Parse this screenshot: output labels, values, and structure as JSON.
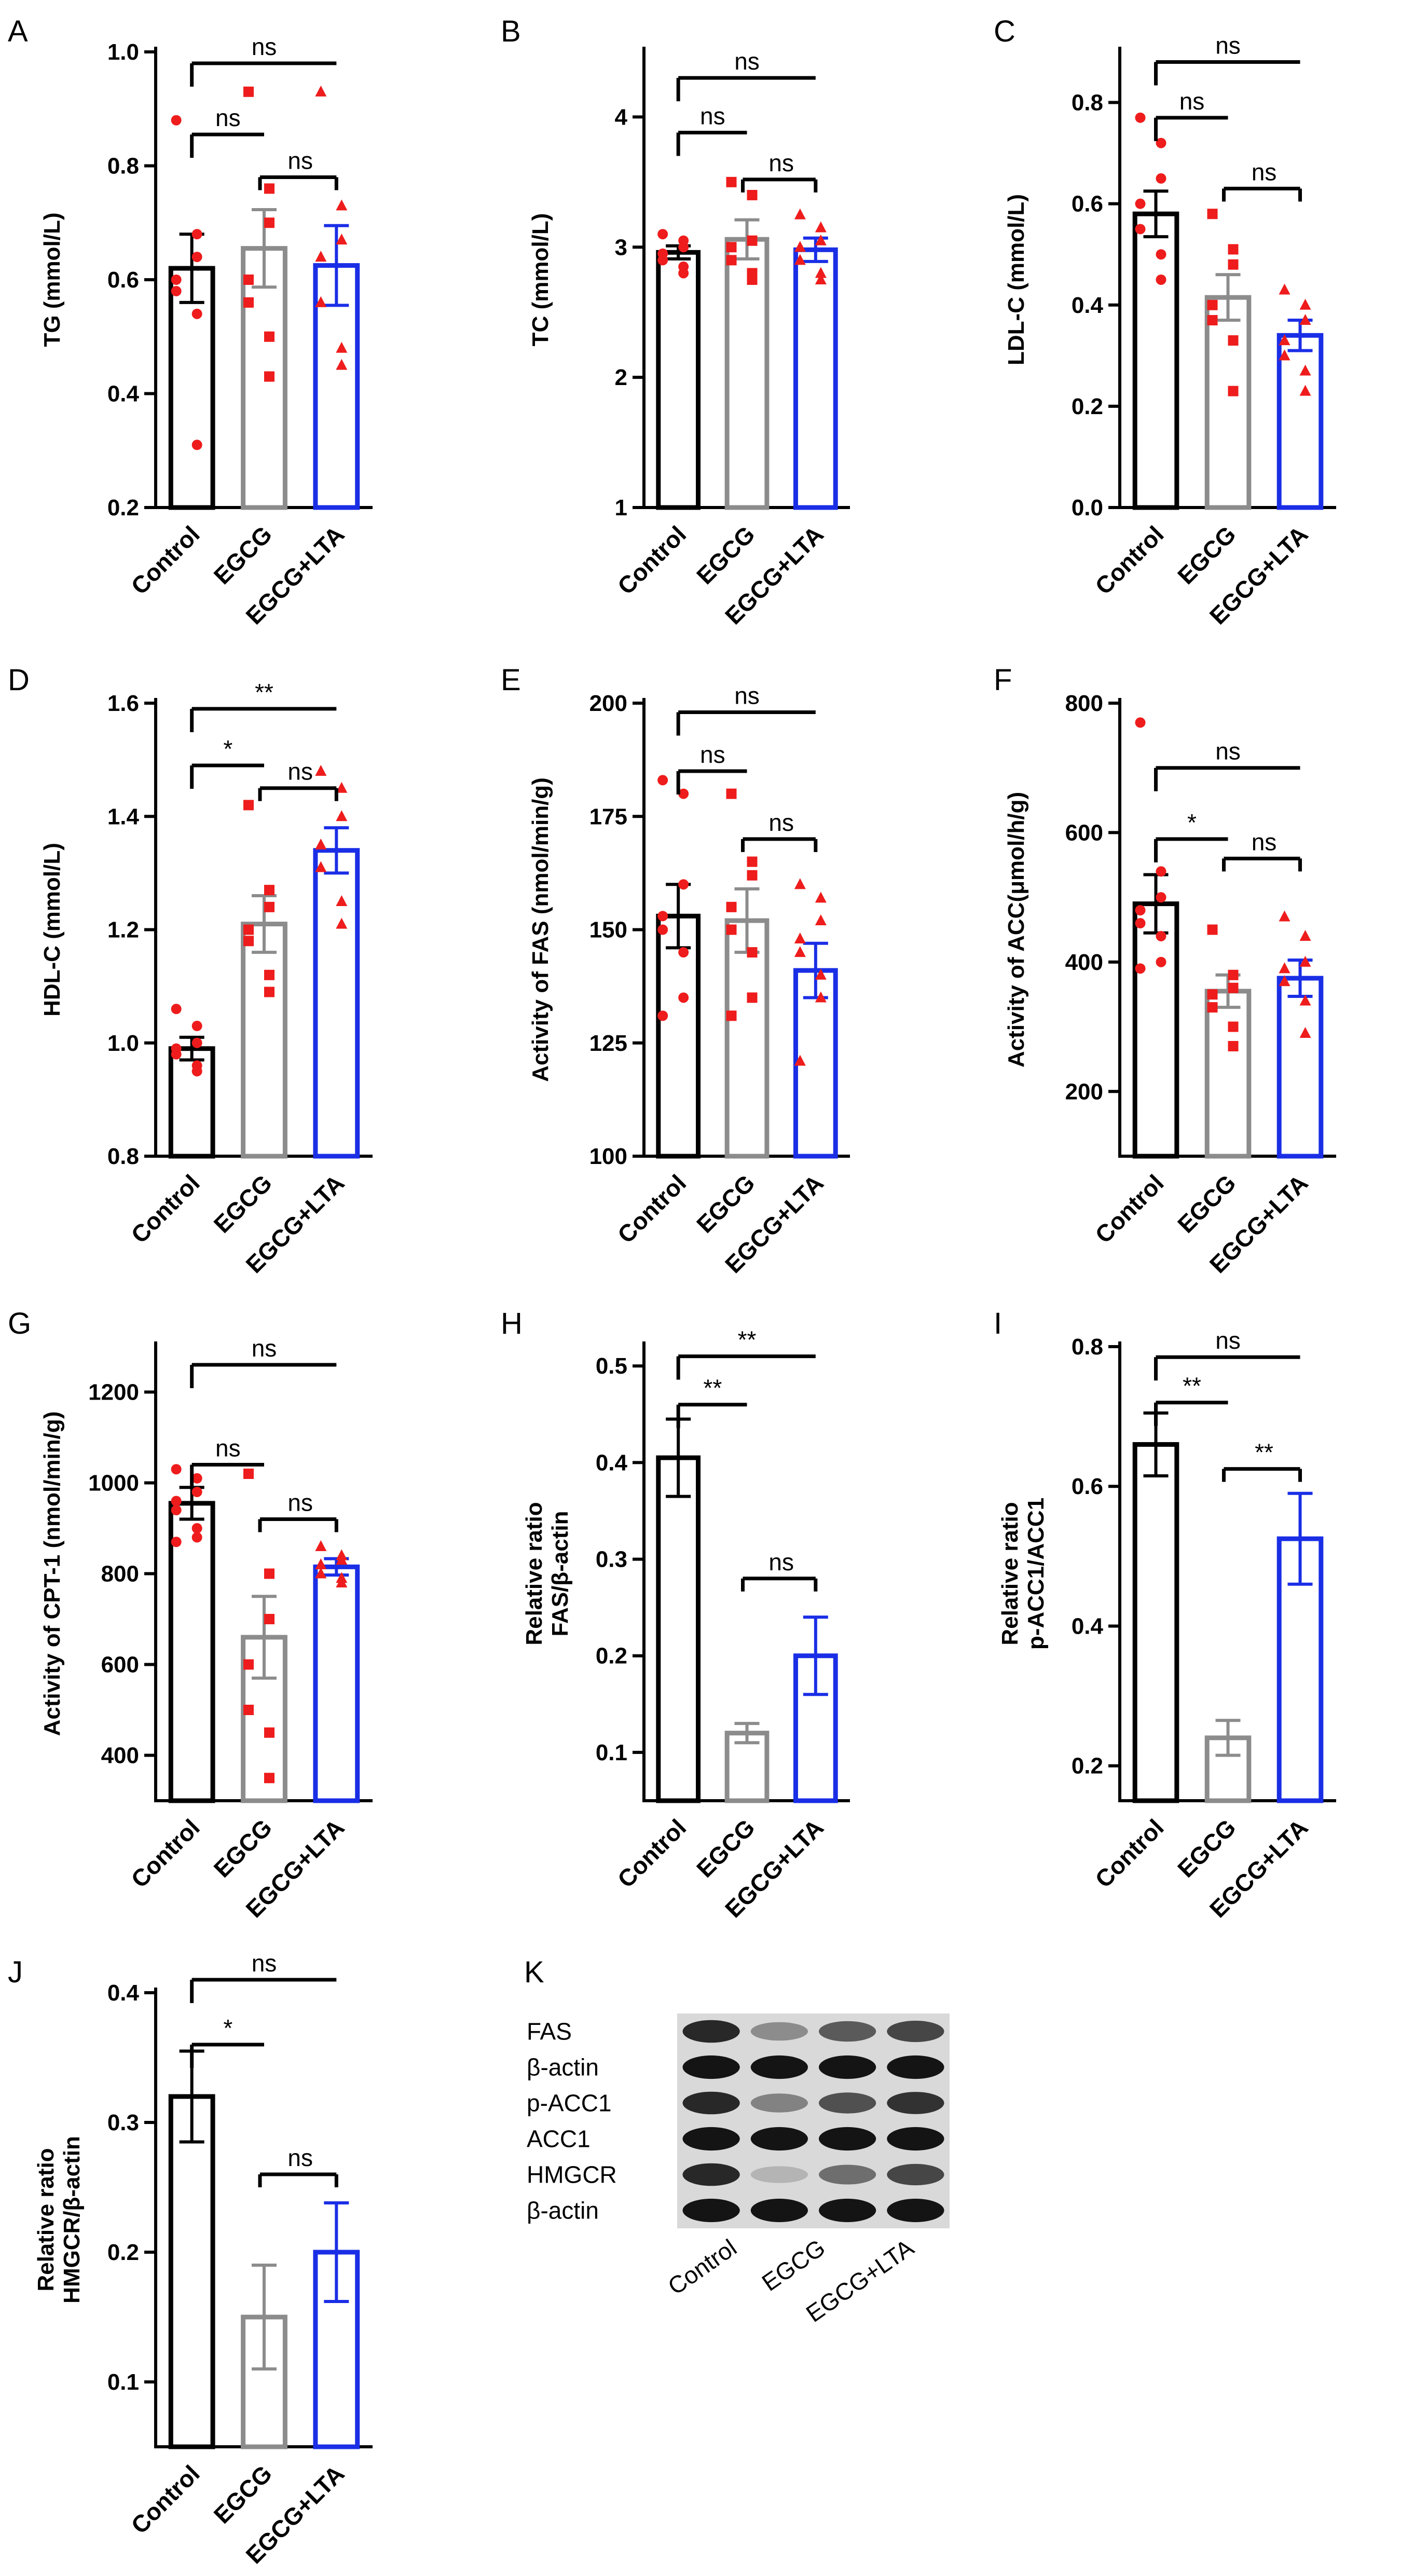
{
  "colors": {
    "control": "#000000",
    "egcg": "#8c8c8c",
    "egcg_lta": "#1a2ee6",
    "points": "#ee1c1c"
  },
  "chart_data": [
    {
      "id": "A",
      "type": "bar",
      "ylabel": "TG (mmol/L)",
      "categories": [
        "Control",
        "EGCG",
        "EGCG+LTA"
      ],
      "ylim": [
        0.2,
        1.0
      ],
      "yticks": [
        0.2,
        0.4,
        0.6,
        0.8,
        1.0
      ],
      "tick_decimals": 1,
      "values": [
        0.62,
        0.655,
        0.625
      ],
      "errors": [
        0.06,
        0.068,
        0.07
      ],
      "points": [
        [
          0.88,
          0.68,
          0.64,
          0.6,
          0.58,
          0.54,
          0.31
        ],
        [
          0.93,
          0.76,
          0.7,
          0.6,
          0.56,
          0.5,
          0.43
        ],
        [
          0.93,
          0.73,
          0.67,
          0.64,
          0.56,
          0.48,
          0.45
        ]
      ],
      "markers": [
        "circle",
        "square",
        "triangle"
      ],
      "significance": [
        {
          "from": 0,
          "to": 1,
          "label": "ns",
          "y": 0.855
        },
        {
          "from": 1,
          "to": 2,
          "label": "ns",
          "y": 0.78
        },
        {
          "from": 0,
          "to": 2,
          "label": "ns",
          "y": 0.98
        }
      ]
    },
    {
      "id": "B",
      "type": "bar",
      "ylabel": "TC (mmol/L)",
      "categories": [
        "Control",
        "EGCG",
        "EGCG+LTA"
      ],
      "ylim": [
        1,
        4.5
      ],
      "yticks": [
        1,
        2,
        3,
        4
      ],
      "tick_decimals": 0,
      "values": [
        2.96,
        3.06,
        2.98
      ],
      "errors": [
        0.05,
        0.15,
        0.09
      ],
      "points": [
        [
          3.1,
          3.05,
          3.0,
          2.95,
          2.9,
          2.85,
          2.8
        ],
        [
          3.5,
          3.4,
          3.05,
          3.0,
          2.9,
          2.8,
          2.75
        ],
        [
          3.25,
          3.15,
          3.05,
          3.0,
          2.9,
          2.8,
          2.75
        ]
      ],
      "markers": [
        "circle",
        "square",
        "triangle"
      ],
      "significance": [
        {
          "from": 0,
          "to": 1,
          "label": "ns",
          "y": 3.88
        },
        {
          "from": 1,
          "to": 2,
          "label": "ns",
          "y": 3.52
        },
        {
          "from": 0,
          "to": 2,
          "label": "ns",
          "y": 4.3
        }
      ]
    },
    {
      "id": "C",
      "type": "bar",
      "ylabel": "LDL-C (mmol/L)",
      "categories": [
        "Control",
        "EGCG",
        "EGCG+LTA"
      ],
      "ylim": [
        0.0,
        0.9
      ],
      "yticks": [
        0.0,
        0.2,
        0.4,
        0.6,
        0.8
      ],
      "tick_decimals": 1,
      "values": [
        0.58,
        0.415,
        0.34
      ],
      "errors": [
        0.045,
        0.045,
        0.03
      ],
      "points": [
        [
          0.77,
          0.72,
          0.65,
          0.6,
          0.55,
          0.5,
          0.45
        ],
        [
          0.58,
          0.51,
          0.48,
          0.4,
          0.37,
          0.33,
          0.23
        ],
        [
          0.43,
          0.4,
          0.37,
          0.33,
          0.3,
          0.27,
          0.23
        ]
      ],
      "markers": [
        "circle",
        "square",
        "triangle"
      ],
      "significance": [
        {
          "from": 0,
          "to": 1,
          "label": "ns",
          "y": 0.77
        },
        {
          "from": 1,
          "to": 2,
          "label": "ns",
          "y": 0.63
        },
        {
          "from": 0,
          "to": 2,
          "label": "ns",
          "y": 0.88
        }
      ]
    },
    {
      "id": "D",
      "type": "bar",
      "ylabel": "HDL-C (mmol/L)",
      "categories": [
        "Control",
        "EGCG",
        "EGCG+LTA"
      ],
      "ylim": [
        0.8,
        1.6
      ],
      "yticks": [
        0.8,
        1.0,
        1.2,
        1.4,
        1.6
      ],
      "tick_decimals": 1,
      "values": [
        0.99,
        1.21,
        1.34
      ],
      "errors": [
        0.02,
        0.05,
        0.04
      ],
      "points": [
        [
          1.06,
          1.03,
          1.0,
          0.99,
          0.98,
          0.96,
          0.95
        ],
        [
          1.42,
          1.27,
          1.24,
          1.2,
          1.18,
          1.12,
          1.09
        ],
        [
          1.48,
          1.45,
          1.4,
          1.35,
          1.31,
          1.25,
          1.21
        ]
      ],
      "markers": [
        "circle",
        "square",
        "triangle"
      ],
      "significance": [
        {
          "from": 0,
          "to": 1,
          "label": "*",
          "y": 1.49
        },
        {
          "from": 1,
          "to": 2,
          "label": "ns",
          "y": 1.45
        },
        {
          "from": 0,
          "to": 2,
          "label": "**",
          "y": 1.59
        }
      ]
    },
    {
      "id": "E",
      "type": "bar",
      "ylabel": "Activity of FAS (nmol/min/g)",
      "categories": [
        "Control",
        "EGCG",
        "EGCG+LTA"
      ],
      "ylim": [
        100,
        200
      ],
      "yticks": [
        100,
        125,
        150,
        175,
        200
      ],
      "tick_decimals": 0,
      "values": [
        153,
        152,
        141
      ],
      "errors": [
        7,
        7,
        6
      ],
      "points": [
        [
          183,
          180,
          160,
          153,
          150,
          145,
          135,
          131
        ],
        [
          180,
          165,
          162,
          155,
          150,
          145,
          135,
          131
        ],
        [
          160,
          157,
          152,
          148,
          145,
          140,
          135,
          121
        ]
      ],
      "markers": [
        "circle",
        "square",
        "triangle"
      ],
      "significance": [
        {
          "from": 0,
          "to": 1,
          "label": "ns",
          "y": 185
        },
        {
          "from": 1,
          "to": 2,
          "label": "ns",
          "y": 170
        },
        {
          "from": 0,
          "to": 2,
          "label": "ns",
          "y": 198
        }
      ]
    },
    {
      "id": "F",
      "type": "bar",
      "ylabel": "Activity of ACC(μmol/h/g)",
      "categories": [
        "Control",
        "EGCG",
        "EGCG+LTA"
      ],
      "ylim": [
        100,
        800
      ],
      "yticks": [
        200,
        400,
        600,
        800
      ],
      "tick_decimals": 0,
      "values": [
        490,
        355,
        375
      ],
      "errors": [
        45,
        25,
        28
      ],
      "points": [
        [
          770,
          540,
          500,
          480,
          460,
          440,
          400,
          390
        ],
        [
          450,
          380,
          360,
          350,
          330,
          300,
          270
        ],
        [
          470,
          440,
          400,
          390,
          370,
          340,
          290
        ]
      ],
      "markers": [
        "circle",
        "square",
        "triangle"
      ],
      "significance": [
        {
          "from": 0,
          "to": 1,
          "label": "*",
          "y": 590
        },
        {
          "from": 1,
          "to": 2,
          "label": "ns",
          "y": 560
        },
        {
          "from": 0,
          "to": 2,
          "label": "ns",
          "y": 700
        }
      ]
    },
    {
      "id": "G",
      "type": "bar",
      "ylabel": "Activity of CPT-1 (nmol/min/g)",
      "categories": [
        "Control",
        "EGCG",
        "EGCG+LTA"
      ],
      "ylim": [
        300,
        1300
      ],
      "yticks": [
        400,
        600,
        800,
        1000,
        1200
      ],
      "tick_decimals": 0,
      "values": [
        955,
        660,
        815
      ],
      "errors": [
        35,
        90,
        18
      ],
      "points": [
        [
          1030,
          1010,
          980,
          960,
          940,
          900,
          880,
          870
        ],
        [
          1020,
          800,
          700,
          600,
          500,
          450,
          350
        ],
        [
          860,
          840,
          830,
          820,
          800,
          790,
          780
        ]
      ],
      "markers": [
        "circle",
        "square",
        "triangle"
      ],
      "significance": [
        {
          "from": 0,
          "to": 1,
          "label": "ns",
          "y": 1040
        },
        {
          "from": 1,
          "to": 2,
          "label": "ns",
          "y": 920
        },
        {
          "from": 0,
          "to": 2,
          "label": "ns",
          "y": 1260
        }
      ]
    },
    {
      "id": "H",
      "type": "bar",
      "ylabel": "Relative ratio\nFAS/β-actin",
      "categories": [
        "Control",
        "EGCG",
        "EGCG+LTA"
      ],
      "ylim": [
        0.05,
        0.52
      ],
      "yticks": [
        0.1,
        0.2,
        0.3,
        0.4,
        0.5
      ],
      "tick_decimals": 1,
      "values": [
        0.405,
        0.12,
        0.2
      ],
      "errors": [
        0.04,
        0.01,
        0.04
      ],
      "points": [
        [],
        [],
        []
      ],
      "markers": [
        "circle",
        "square",
        "triangle"
      ],
      "significance": [
        {
          "from": 0,
          "to": 1,
          "label": "**",
          "y": 0.46
        },
        {
          "from": 1,
          "to": 2,
          "label": "ns",
          "y": 0.28
        },
        {
          "from": 0,
          "to": 2,
          "label": "**",
          "y": 0.51
        }
      ]
    },
    {
      "id": "I",
      "type": "bar",
      "ylabel": "Relative ratio\np-ACC1/ACC1",
      "categories": [
        "Control",
        "EGCG",
        "EGCG+LTA"
      ],
      "ylim": [
        0.15,
        0.8
      ],
      "yticks": [
        0.2,
        0.4,
        0.6,
        0.8
      ],
      "tick_decimals": 1,
      "values": [
        0.66,
        0.24,
        0.525
      ],
      "errors": [
        0.045,
        0.025,
        0.065
      ],
      "points": [
        [],
        [],
        []
      ],
      "markers": [
        "circle",
        "square",
        "triangle"
      ],
      "significance": [
        {
          "from": 0,
          "to": 1,
          "label": "**",
          "y": 0.72
        },
        {
          "from": 1,
          "to": 2,
          "label": "**",
          "y": 0.625
        },
        {
          "from": 0,
          "to": 2,
          "label": "ns",
          "y": 0.785
        }
      ]
    },
    {
      "id": "J",
      "type": "bar",
      "ylabel": "Relative ratio\nHMGCR/β-actin",
      "categories": [
        "Control",
        "EGCG",
        "EGCG+LTA"
      ],
      "ylim": [
        0.05,
        0.4
      ],
      "yticks": [
        0.1,
        0.2,
        0.3,
        0.4
      ],
      "tick_decimals": 1,
      "values": [
        0.32,
        0.15,
        0.2
      ],
      "errors": [
        0.035,
        0.04,
        0.038
      ],
      "points": [
        [],
        [],
        []
      ],
      "markers": [
        "circle",
        "square",
        "triangle"
      ],
      "significance": [
        {
          "from": 0,
          "to": 1,
          "label": "*",
          "y": 0.36
        },
        {
          "from": 1,
          "to": 2,
          "label": "ns",
          "y": 0.26
        },
        {
          "from": 0,
          "to": 2,
          "label": "ns",
          "y": 0.41
        }
      ]
    }
  ],
  "western_blot": {
    "letter": "K",
    "rows": [
      "FAS",
      "β-actin",
      "p-ACC1",
      "ACC1",
      "HMGCR",
      "β-actin"
    ],
    "lanes": [
      "Control",
      "EGCG",
      "EGCG+LTA"
    ],
    "band_intensity": [
      [
        0.85,
        0.35,
        0.6,
        0.7
      ],
      [
        0.95,
        0.95,
        0.95,
        0.95
      ],
      [
        0.85,
        0.4,
        0.65,
        0.8
      ],
      [
        0.95,
        0.95,
        0.95,
        0.95
      ],
      [
        0.85,
        0.15,
        0.5,
        0.7
      ],
      [
        0.95,
        0.95,
        0.95,
        0.95
      ]
    ]
  }
}
